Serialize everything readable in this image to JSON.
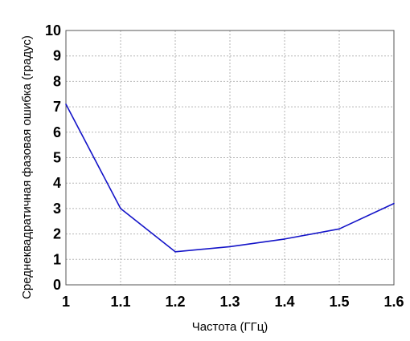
{
  "chart_data": {
    "type": "line",
    "title": "",
    "xlabel": "Частота (ГГц)",
    "ylabel": "Среднеквадратичная фазовая ошибка (градус)",
    "xlim": [
      1,
      1.6
    ],
    "ylim": [
      0,
      10
    ],
    "x_ticks": [
      "1",
      "1.1",
      "1.2",
      "1.3",
      "1.4",
      "1.5",
      "1.6"
    ],
    "y_ticks": [
      "0",
      "1",
      "2",
      "3",
      "4",
      "5",
      "6",
      "7",
      "8",
      "9",
      "10"
    ],
    "grid": true,
    "legend": "none",
    "series": [
      {
        "color": "#1414c8",
        "x": [
          1.0,
          1.1,
          1.2,
          1.3,
          1.4,
          1.5,
          1.6
        ],
        "y": [
          7.1,
          3.0,
          1.3,
          1.5,
          1.8,
          2.2,
          3.2
        ]
      }
    ]
  }
}
